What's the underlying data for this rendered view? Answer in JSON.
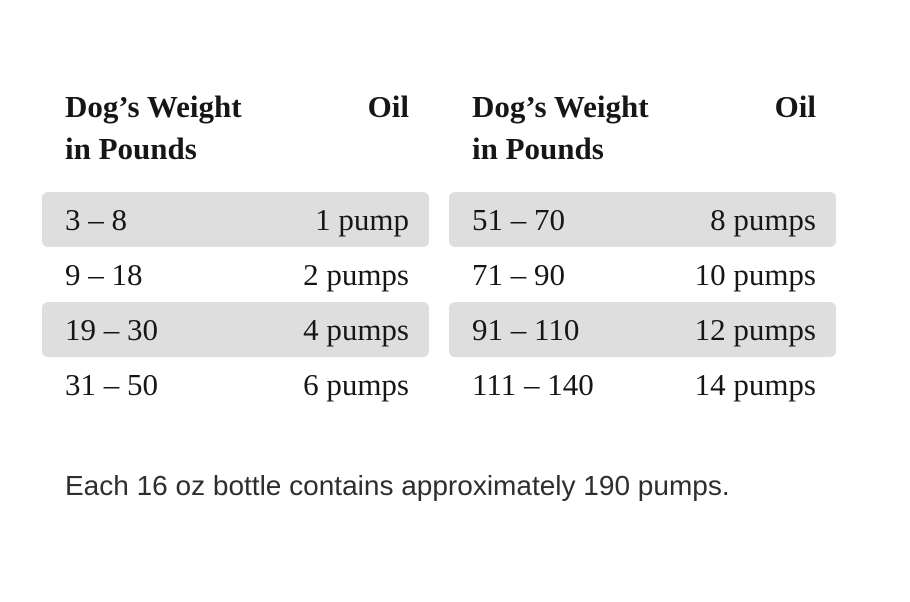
{
  "colors": {
    "row_shade": "#dedede",
    "table_text": "#161616",
    "note_text": "#2e2e2e",
    "page_background": "#ffffff"
  },
  "tables": [
    {
      "weight_header": "Dog’s Weight\nin Pounds",
      "oil_header": "Oil",
      "rows": [
        {
          "weight": "3 – 8",
          "oil": "1 pump",
          "shaded": true
        },
        {
          "weight": "9 – 18",
          "oil": "2 pumps",
          "shaded": false
        },
        {
          "weight": "19 – 30",
          "oil": "4 pumps",
          "shaded": true
        },
        {
          "weight": "31 – 50",
          "oil": "6 pumps",
          "shaded": false
        }
      ]
    },
    {
      "weight_header": "Dog’s Weight\nin Pounds",
      "oil_header": "Oil",
      "rows": [
        {
          "weight": "51 – 70",
          "oil": "8 pumps",
          "shaded": true
        },
        {
          "weight": "71 – 90",
          "oil": "10 pumps",
          "shaded": false
        },
        {
          "weight": "91 – 110",
          "oil": "12 pumps",
          "shaded": true
        },
        {
          "weight": "111 – 140",
          "oil": "14 pumps",
          "shaded": false
        }
      ]
    }
  ],
  "note": "Each 16 oz bottle contains approximately 190 pumps."
}
